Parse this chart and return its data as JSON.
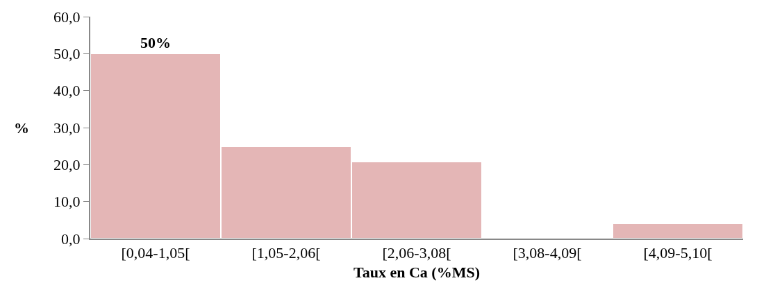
{
  "chart_data": {
    "type": "bar",
    "xlabel": "Taux en Ca (%MS)",
    "ylabel": "%",
    "categories": [
      "[0,04-1,05[",
      "[1,05-2,06[",
      "[2,06-3,08[",
      "[3,08-4,09[",
      "[4,09-5,10["
    ],
    "values": [
      50,
      25,
      20.8,
      0,
      4.2
    ],
    "value_labels": [
      "50%",
      null,
      null,
      null,
      null
    ],
    "color": "#e4b6b6",
    "ylim": [
      0,
      60
    ],
    "yticks": [
      {
        "value": 0,
        "label": "0,0"
      },
      {
        "value": 10,
        "label": "10,0"
      },
      {
        "value": 20,
        "label": "20,0"
      },
      {
        "value": 30,
        "label": "30,0"
      },
      {
        "value": 40,
        "label": "40,0"
      },
      {
        "value": 50,
        "label": "50,0"
      },
      {
        "value": 60,
        "label": "60,0"
      }
    ],
    "legend": false
  }
}
